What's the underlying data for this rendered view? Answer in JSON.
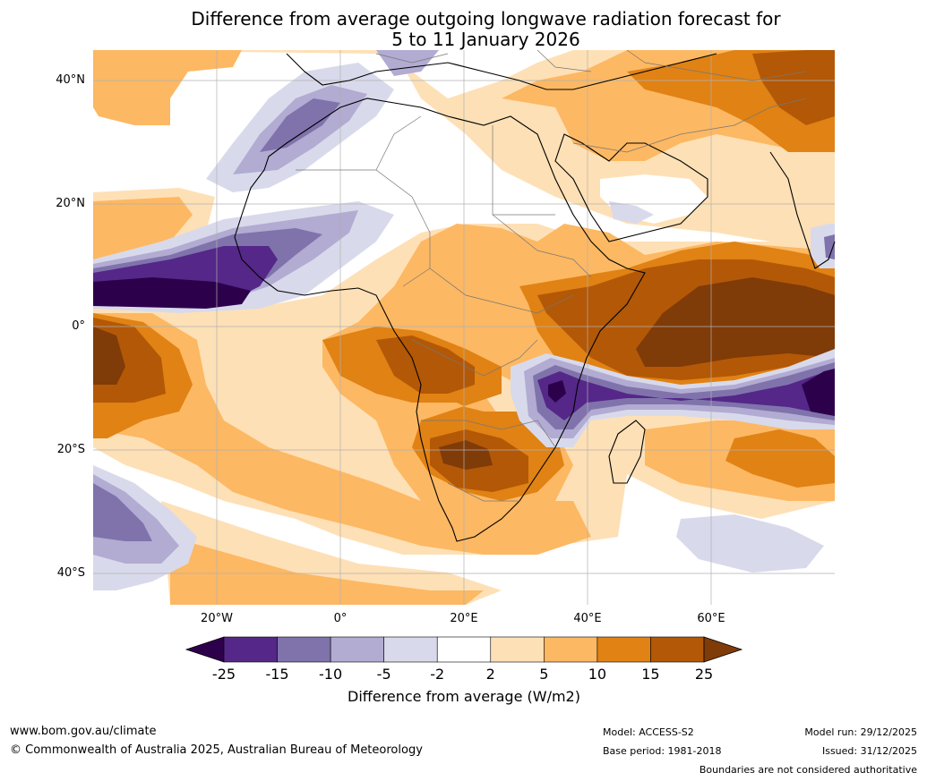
{
  "title_line1": "Difference from average outgoing longwave radiation forecast for",
  "title_line2": "5 to 11 January 2026",
  "lat_labels": [
    "40°N",
    "20°N",
    "0°",
    "20°S",
    "40°S"
  ],
  "lon_labels": [
    "20°W",
    "0°",
    "20°E",
    "40°E",
    "60°E"
  ],
  "colorbar": {
    "ticks": [
      "-25",
      "-15",
      "-10",
      "-5",
      "-2",
      "2",
      "5",
      "10",
      "15",
      "25"
    ],
    "colors": [
      "#2d004b",
      "#542788",
      "#8073ac",
      "#b2abd2",
      "#d8daeb",
      "#ffffff",
      "#fee0b6",
      "#fdb863",
      "#e08214",
      "#b35806",
      "#7f3b08"
    ],
    "title": "Difference from average (W/m2)"
  },
  "footer": {
    "website": "www.bom.gov.au/climate",
    "copyright": "© Commonwealth of Australia 2025, Australian Bureau of Meteorology",
    "model": "Model: ACCESS-S2",
    "base_period": "Base period: 1981-2018",
    "model_run": "Model run: 29/12/2025",
    "issued": "Issued: 31/12/2025",
    "disclaimer": "Boundaries are not considered authoritative"
  }
}
